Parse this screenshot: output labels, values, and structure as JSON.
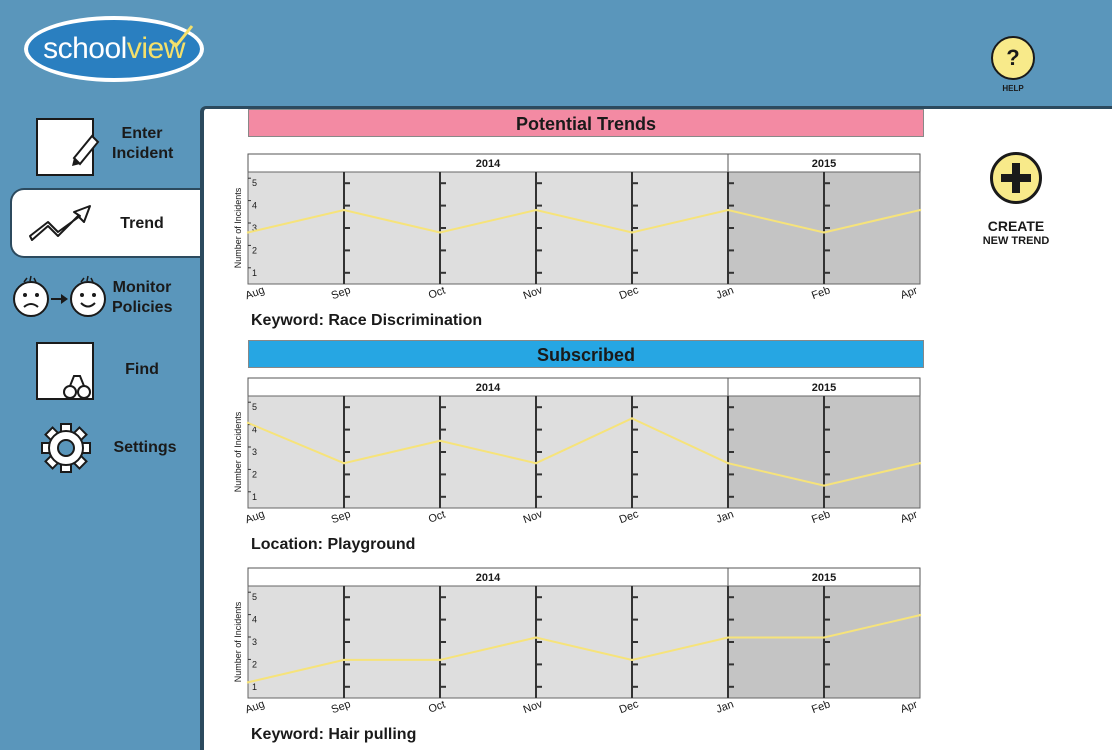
{
  "app": {
    "logo_text_main": "school",
    "logo_text_accent": "view",
    "help_icon": "?",
    "help_label": "HELP"
  },
  "sidebar": {
    "items": [
      {
        "label1": "Enter",
        "label2": "Incident",
        "icon": "notepad-pencil-icon"
      },
      {
        "label1": "Trend",
        "label2": "",
        "icon": "trend-arrow-icon",
        "active": true
      },
      {
        "label1": "Monitor",
        "label2": "Policies",
        "icon": "sad-to-happy-icon"
      },
      {
        "label1": "Find",
        "label2": "",
        "icon": "notepad-binoculars-icon"
      },
      {
        "label1": "Settings",
        "label2": "",
        "icon": "gear-icon"
      }
    ]
  },
  "sections": {
    "potential": "Potential Trends",
    "subscribed": "Subscribed"
  },
  "create_trend": {
    "label1": "CREATE",
    "label2": "NEW TREND",
    "icon": "plus-icon"
  },
  "colors": {
    "line": "#f6e37a",
    "bg_2014": "#dedede",
    "bg_2015": "#c4c4c4",
    "pink": "#f38aa3",
    "blue": "#26a6e3"
  },
  "chart_data": [
    {
      "type": "line",
      "caption": "Keyword: Race Discrimination",
      "ylabel": "Number of Incidents",
      "year_labels": [
        "2014",
        "2015"
      ],
      "categories": [
        "Aug",
        "Sep",
        "Oct",
        "Nov",
        "Dec",
        "Jan",
        "Feb",
        "Apr"
      ],
      "y_ticks": [
        "1",
        "2",
        "3",
        "4",
        "5"
      ],
      "values": [
        2.8,
        3.8,
        2.8,
        3.8,
        2.8,
        3.8,
        2.8,
        3.8
      ],
      "ylim": [
        0.5,
        5.5
      ]
    },
    {
      "type": "line",
      "caption": "Location: Playground",
      "ylabel": "Number of Incidents",
      "year_labels": [
        "2014",
        "2015"
      ],
      "categories": [
        "Aug",
        "Sep",
        "Oct",
        "Nov",
        "Dec",
        "Jan",
        "Feb",
        "Apr"
      ],
      "y_ticks": [
        "1",
        "2",
        "3",
        "4",
        "5"
      ],
      "values": [
        4.3,
        2.5,
        3.5,
        2.5,
        4.5,
        2.5,
        1.5,
        2.5
      ],
      "ylim": [
        0.5,
        5.5
      ]
    },
    {
      "type": "line",
      "caption": "Keyword: Hair pulling",
      "ylabel": "Number of Incidents",
      "year_labels": [
        "2014",
        "2015"
      ],
      "categories": [
        "Aug",
        "Sep",
        "Oct",
        "Nov",
        "Dec",
        "Jan",
        "Feb",
        "Apr"
      ],
      "y_ticks": [
        "1",
        "2",
        "3",
        "4",
        "5"
      ],
      "values": [
        1.2,
        2.2,
        2.2,
        3.2,
        2.2,
        3.2,
        3.2,
        4.2
      ],
      "ylim": [
        0.5,
        5.5
      ]
    }
  ]
}
